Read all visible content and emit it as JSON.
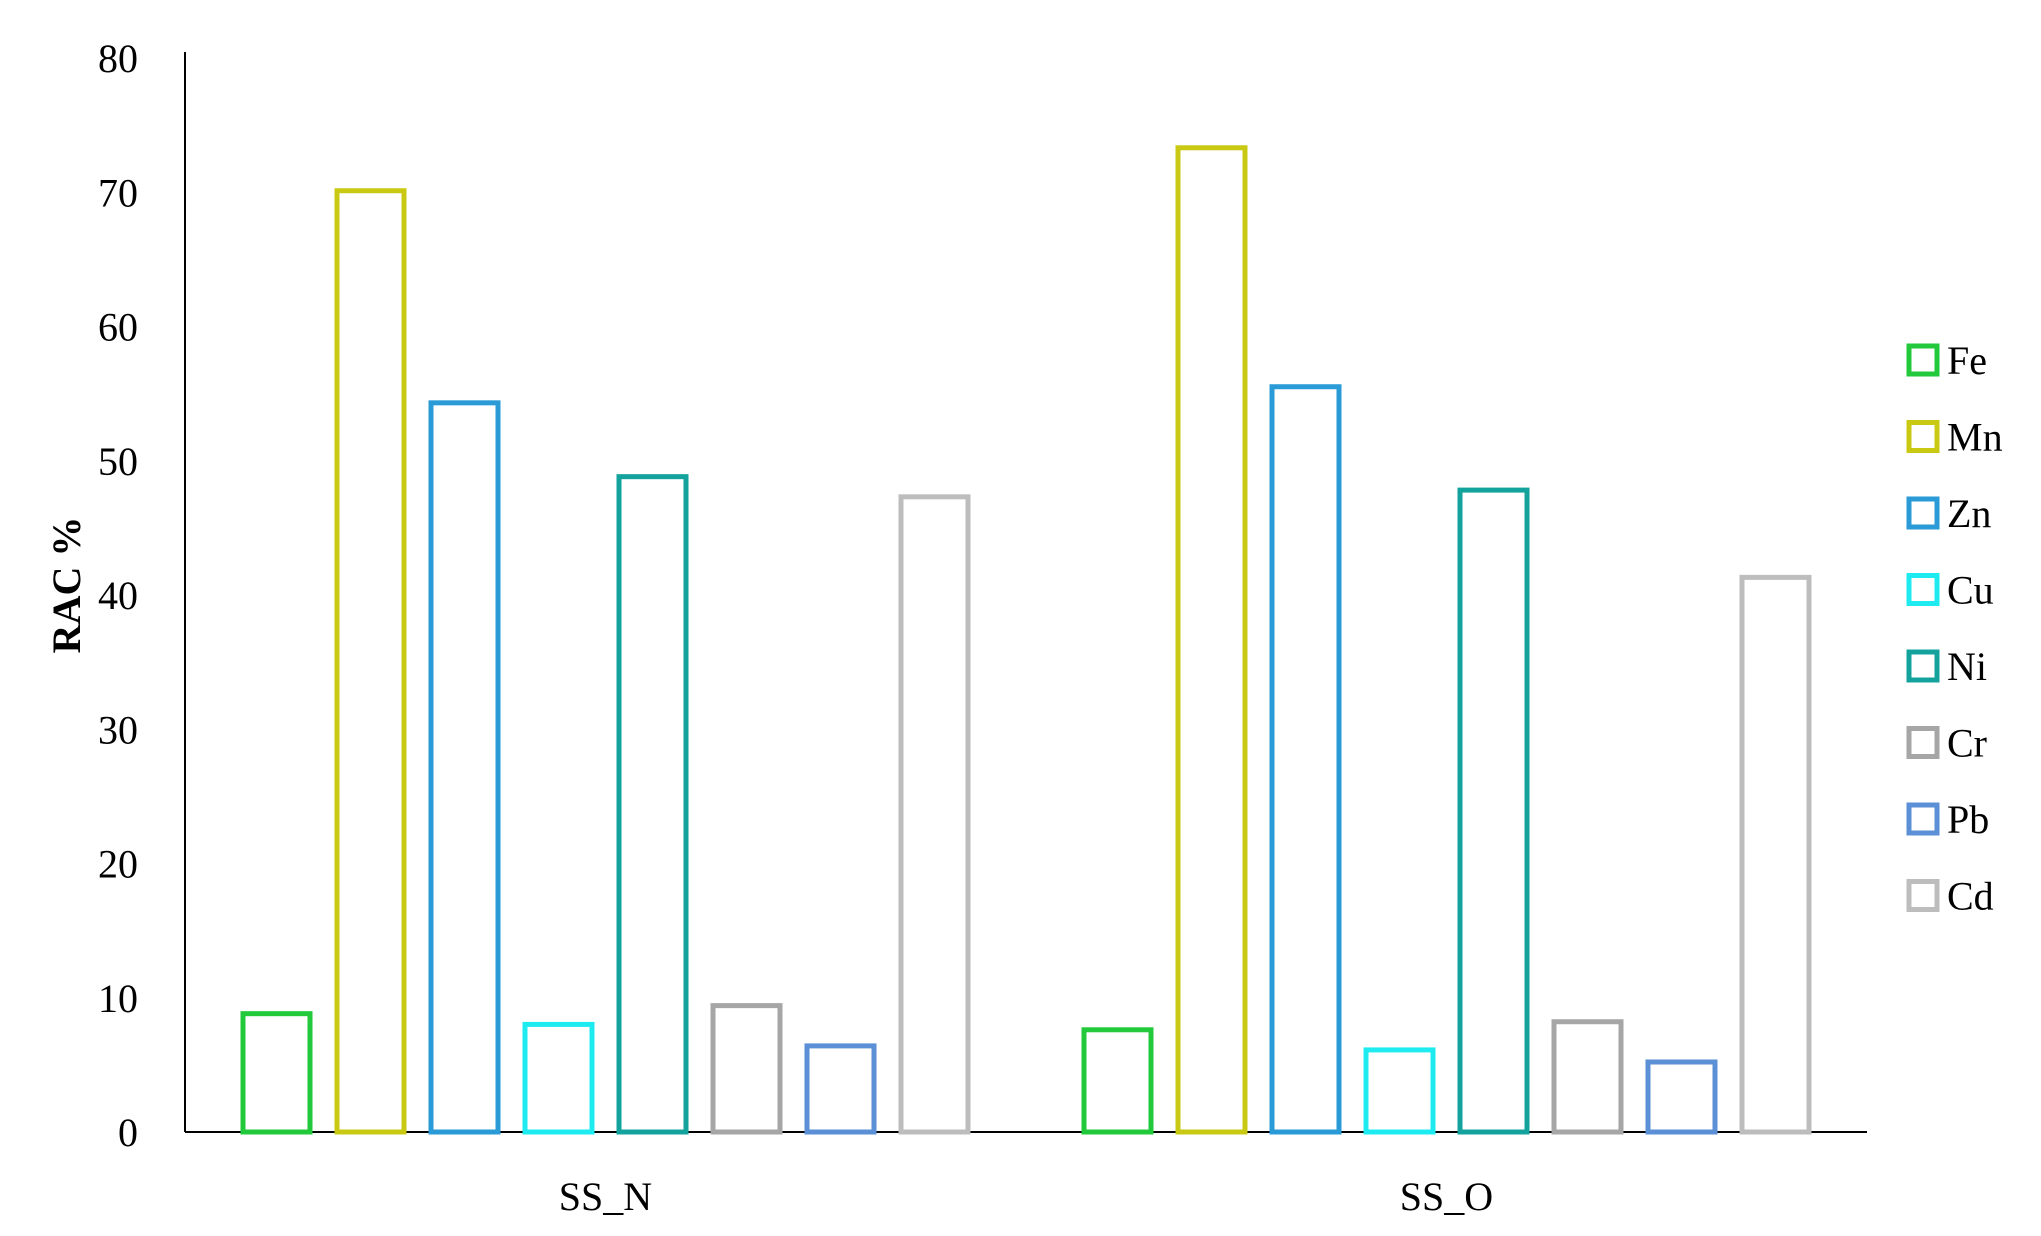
{
  "chart_data": {
    "type": "bar",
    "title": "",
    "xlabel": "",
    "ylabel": "RAC %",
    "categories": [
      "SS_N",
      "SS_O"
    ],
    "ylim": [
      0,
      80
    ],
    "yticks": [
      0,
      10,
      20,
      30,
      40,
      50,
      60,
      70,
      80
    ],
    "grid": false,
    "legend_position": "right",
    "bar_style": "outline",
    "series": [
      {
        "name": "Fe",
        "color": "#22C93A",
        "values": [
          9.0,
          7.8
        ]
      },
      {
        "name": "Mn",
        "color": "#C9C914",
        "values": [
          70.3,
          73.5
        ]
      },
      {
        "name": "Zn",
        "color": "#2A9BD6",
        "values": [
          54.5,
          55.7
        ]
      },
      {
        "name": "Cu",
        "color": "#1EEBF0",
        "values": [
          8.2,
          6.3
        ]
      },
      {
        "name": "Ni",
        "color": "#13A39C",
        "values": [
          49.0,
          48.0
        ]
      },
      {
        "name": "Cr",
        "color": "#A6A6A6",
        "values": [
          9.6,
          8.4
        ]
      },
      {
        "name": "Pb",
        "color": "#5B8FD6",
        "values": [
          6.6,
          5.4
        ]
      },
      {
        "name": "Cd",
        "color": "#BDBDBD",
        "values": [
          47.5,
          41.5
        ]
      }
    ]
  }
}
